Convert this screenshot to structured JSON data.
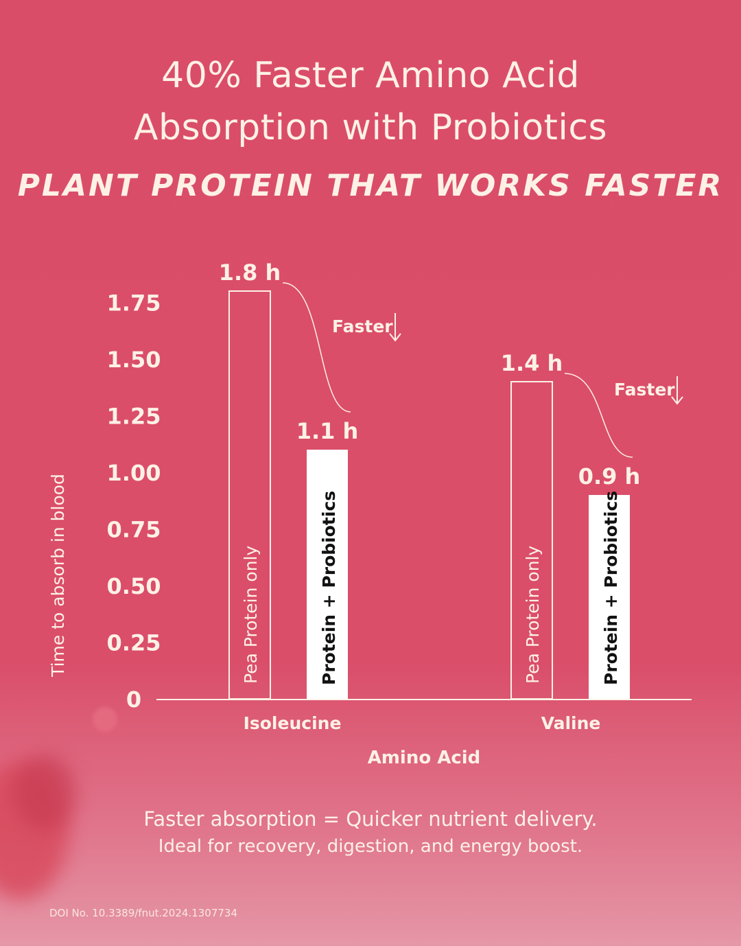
{
  "title_line1": "40% Faster Amino Acid",
  "title_line2": "Absorption with Probiotics",
  "subtitle": "PLANT PROTEIN THAT WORKS FASTER",
  "footer": {
    "line1": "Faster absorption = Quicker nutrient delivery.",
    "line2": "Ideal for recovery, digestion, and energy boost.",
    "doi": "DOI No. 10.3389/fnut.2024.1307734"
  },
  "colors": {
    "background": "#da4d69",
    "foreground": "#fdf1e6",
    "filled_bar": "#ffffff",
    "filled_bar_text": "#111111"
  },
  "chart_data": {
    "type": "bar",
    "xlabel": "Amino Acid",
    "ylabel": "Time to absorb in blood",
    "categories": [
      "Isoleucine",
      "Valine"
    ],
    "ylim": [
      0,
      1.9
    ],
    "yticks": [
      "0",
      "0.25",
      "0.50",
      "0.75",
      "1.00",
      "1.25",
      "1.50",
      "1.75"
    ],
    "ytick_values": [
      0,
      0.25,
      0.5,
      0.75,
      1.0,
      1.25,
      1.5,
      1.75
    ],
    "grid": false,
    "series": [
      {
        "name": "Pea Protein only",
        "values": [
          1.8,
          1.4
        ],
        "labels": [
          "1.8 h",
          "1.4 h"
        ],
        "style": "outline"
      },
      {
        "name": "Protein + Probiotics",
        "values": [
          1.1,
          0.9
        ],
        "labels": [
          "1.1 h",
          "0.9 h"
        ],
        "style": "filled"
      }
    ],
    "annotations": [
      "Faster",
      "Faster"
    ]
  }
}
